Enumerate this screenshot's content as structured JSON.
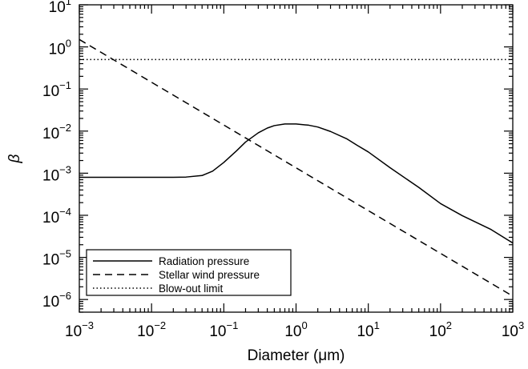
{
  "chart_data": {
    "type": "line",
    "title": "",
    "xlabel": "Diameter (μm)",
    "ylabel": "β",
    "x_scale": "log",
    "y_scale": "log",
    "xlim": [
      0.001,
      1000
    ],
    "ylim": [
      5e-07,
      10
    ],
    "grid": false,
    "legend_position": "bottom-left",
    "x_ticks": [
      {
        "base": "10",
        "exp": "−3",
        "value": 0.001
      },
      {
        "base": "10",
        "exp": "−2",
        "value": 0.01
      },
      {
        "base": "10",
        "exp": "−1",
        "value": 0.1
      },
      {
        "base": "10",
        "exp": "0",
        "value": 1
      },
      {
        "base": "10",
        "exp": "1",
        "value": 10
      },
      {
        "base": "10",
        "exp": "2",
        "value": 100
      },
      {
        "base": "10",
        "exp": "3",
        "value": 1000
      }
    ],
    "y_ticks": [
      {
        "base": "10",
        "exp": "−6",
        "value": 1e-06
      },
      {
        "base": "10",
        "exp": "−5",
        "value": 1e-05
      },
      {
        "base": "10",
        "exp": "−4",
        "value": 0.0001
      },
      {
        "base": "10",
        "exp": "−3",
        "value": 0.001
      },
      {
        "base": "10",
        "exp": "−2",
        "value": 0.01
      },
      {
        "base": "10",
        "exp": "−1",
        "value": 0.1
      },
      {
        "base": "10",
        "exp": "0",
        "value": 1
      },
      {
        "base": "10",
        "exp": "1",
        "value": 10
      }
    ],
    "series": [
      {
        "name": "Radiation pressure",
        "style": "solid",
        "color": "#000000",
        "x": [
          0.001,
          0.003,
          0.01,
          0.02,
          0.03,
          0.05,
          0.07,
          0.1,
          0.15,
          0.2,
          0.3,
          0.4,
          0.5,
          0.7,
          1,
          1.5,
          2,
          3,
          5,
          7,
          10,
          20,
          50,
          100,
          200,
          500,
          1000
        ],
        "y": [
          0.0008,
          0.0008,
          0.0008,
          0.0008,
          0.00081,
          0.00088,
          0.00112,
          0.0018,
          0.0034,
          0.0055,
          0.0091,
          0.0118,
          0.0135,
          0.0148,
          0.0148,
          0.0138,
          0.0125,
          0.0098,
          0.0066,
          0.0046,
          0.0032,
          0.00135,
          0.00046,
          0.00019,
          9.8e-05,
          4.6e-05,
          2.2e-05
        ]
      },
      {
        "name": "Stellar wind pressure",
        "style": "dashed",
        "color": "#000000",
        "x": [
          0.001,
          1000
        ],
        "y": [
          1.5,
          1.2e-06
        ]
      },
      {
        "name": "Blow-out limit",
        "style": "dotted",
        "color": "#000000",
        "x": [
          0.001,
          1000
        ],
        "y": [
          0.5,
          0.5
        ]
      }
    ]
  }
}
